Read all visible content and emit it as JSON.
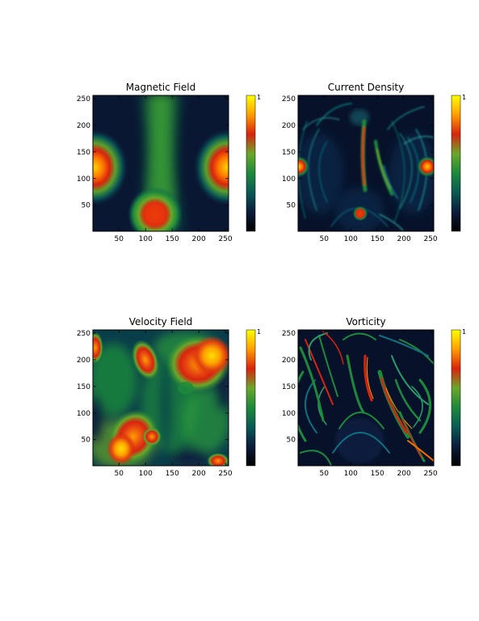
{
  "colormap": [
    "#000000",
    "#0b1c3c",
    "#0a5a55",
    "#1d8a3b",
    "#6aa72a",
    "#d9230f",
    "#ff9d00",
    "#ffff00"
  ],
  "chart_data": [
    {
      "type": "heatmap",
      "title": "Magnetic Field",
      "xlim": [
        1,
        256
      ],
      "ylim": [
        1,
        256
      ],
      "xticks": [
        50,
        100,
        150,
        200,
        250
      ],
      "yticks": [
        50,
        100,
        150,
        200,
        250
      ],
      "colorbar_top_label": "1",
      "colorbar": true
    },
    {
      "type": "heatmap",
      "title": "Current Density",
      "xlim": [
        1,
        256
      ],
      "ylim": [
        1,
        256
      ],
      "xticks": [
        50,
        100,
        150,
        200,
        250
      ],
      "yticks": [
        50,
        100,
        150,
        200,
        250
      ],
      "colorbar_top_label": "1",
      "colorbar": true
    },
    {
      "type": "heatmap",
      "title": "Velocity Field",
      "xlim": [
        1,
        256
      ],
      "ylim": [
        1,
        256
      ],
      "xticks": [
        50,
        100,
        150,
        200,
        250
      ],
      "yticks": [
        50,
        100,
        150,
        200,
        250
      ],
      "colorbar_top_label": "1",
      "colorbar": true
    },
    {
      "type": "heatmap",
      "title": "Vorticity",
      "xlim": [
        1,
        256
      ],
      "ylim": [
        1,
        256
      ],
      "xticks": [
        50,
        100,
        150,
        200,
        250
      ],
      "yticks": [
        50,
        100,
        150,
        200,
        250
      ],
      "colorbar_top_label": "1",
      "colorbar": true
    }
  ]
}
